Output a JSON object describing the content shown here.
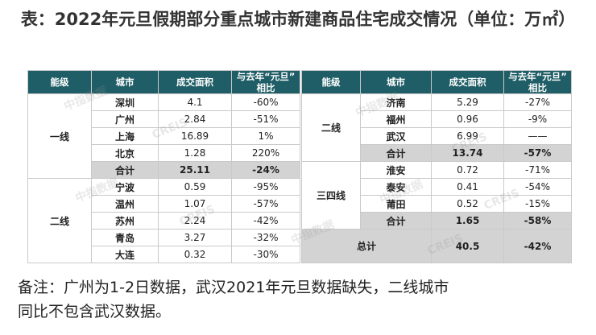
{
  "title": "表：2022年元旦假期部分重点城市新建商品住宅成交情况（单位：万㎡）",
  "headers": {
    "tier": "能级",
    "city": "城市",
    "area": "成交面积",
    "yoy_line1": "与去年“元旦”",
    "yoy_line2": "相比"
  },
  "left_table": {
    "groups": [
      {
        "tier": "一线",
        "rows": [
          {
            "city": "深圳",
            "area": "4.1",
            "yoy": "-60%"
          },
          {
            "city": "广州",
            "area": "2.84",
            "yoy": "-51%"
          },
          {
            "city": "上海",
            "area": "16.89",
            "yoy": "1%"
          },
          {
            "city": "北京",
            "area": "1.28",
            "yoy": "220%"
          }
        ],
        "subtotal": {
          "city": "合计",
          "area": "25.11",
          "yoy": "-24%"
        }
      },
      {
        "tier": "二线",
        "rows": [
          {
            "city": "宁波",
            "area": "0.59",
            "yoy": "-95%"
          },
          {
            "city": "温州",
            "area": "1.07",
            "yoy": "-57%"
          },
          {
            "city": "苏州",
            "area": "2.24",
            "yoy": "-42%"
          },
          {
            "city": "青岛",
            "area": "3.27",
            "yoy": "-32%"
          },
          {
            "city": "大连",
            "area": "0.32",
            "yoy": "-30%"
          }
        ]
      }
    ]
  },
  "right_table": {
    "groups": [
      {
        "tier": "二线",
        "rows": [
          {
            "city": "济南",
            "area": "5.29",
            "yoy": "-27%"
          },
          {
            "city": "福州",
            "area": "0.96",
            "yoy": "-9%"
          },
          {
            "city": "武汉",
            "area": "6.99",
            "yoy": "——"
          }
        ],
        "subtotal": {
          "city": "合计",
          "area": "13.74",
          "yoy": "-57%"
        }
      },
      {
        "tier": "三四线",
        "rows": [
          {
            "city": "淮安",
            "area": "0.72",
            "yoy": "-71%"
          },
          {
            "city": "泰安",
            "area": "0.41",
            "yoy": "-54%"
          },
          {
            "city": "莆田",
            "area": "0.52",
            "yoy": "-15%"
          }
        ],
        "subtotal": {
          "city": "合计",
          "area": "1.65",
          "yoy": "-58%"
        }
      }
    ],
    "total": {
      "label": "总计",
      "area": "40.5",
      "yoy": "-42%"
    }
  },
  "watermark": {
    "cn": "中指数据",
    "en": "CREIS"
  },
  "note_line1": "备注：广州为1-2日数据，武汉2021年元旦数据缺失，二线城市",
  "note_line2": "同比不包含武汉数据。"
}
